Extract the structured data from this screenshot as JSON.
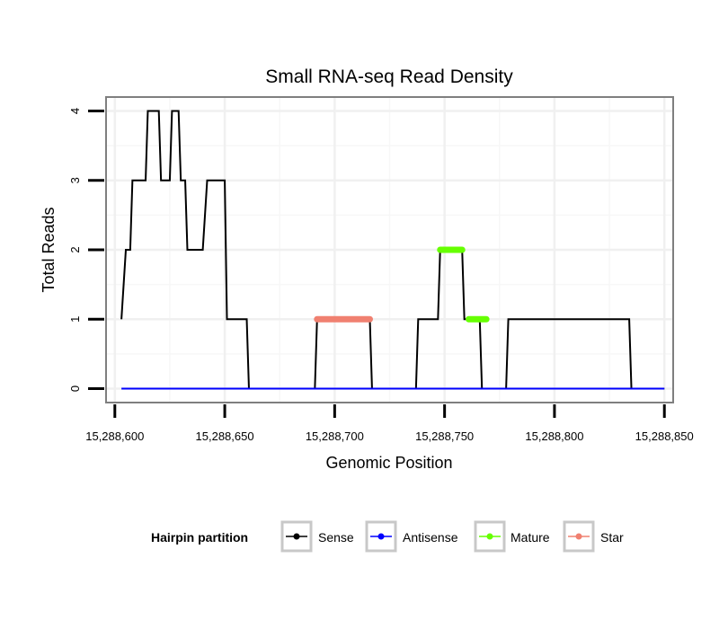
{
  "chart_data": {
    "type": "line",
    "title": "Small RNA-seq Read Density",
    "xlabel": "Genomic Position",
    "ylabel": "Total Reads",
    "xlim": [
      15288596,
      15288854
    ],
    "ylim": [
      -0.2,
      4.2
    ],
    "x_ticks": [
      15288600,
      15288650,
      15288700,
      15288750,
      15288800,
      15288850
    ],
    "x_tick_labels": [
      "15,288,600",
      "15,288,650",
      "15,288,700",
      "15,288,750",
      "15,288,800",
      "15,288,850"
    ],
    "y_ticks": [
      0,
      1,
      2,
      3,
      4
    ],
    "y_tick_labels": [
      "0",
      "1",
      "2",
      "3",
      "4"
    ],
    "grid": true,
    "legend": {
      "title": "Hairpin partition",
      "position": "bottom",
      "entries": [
        "Sense",
        "Antisense",
        "Mature",
        "Star"
      ]
    },
    "series": [
      {
        "name": "Sense",
        "color": "#000000",
        "x": [
          15288603,
          15288605,
          15288607,
          15288608,
          15288610,
          15288614,
          15288615,
          15288620,
          15288621,
          15288625,
          15288626,
          15288629,
          15288630,
          15288632,
          15288633,
          15288639,
          15288640,
          15288642,
          15288643,
          15288650,
          15288651,
          15288660,
          15288661,
          15288676,
          15288677,
          15288691,
          15288692,
          15288716,
          15288717,
          15288737,
          15288738,
          15288747,
          15288748,
          15288758,
          15288759,
          15288766,
          15288767,
          15288778,
          15288779,
          15288834,
          15288835,
          15288850
        ],
        "y": [
          1,
          2,
          2,
          3,
          3,
          3,
          4,
          4,
          3,
          3,
          4,
          4,
          3,
          3,
          2,
          2,
          2,
          3,
          3,
          3,
          1,
          1,
          0,
          0,
          0,
          0,
          1,
          1,
          0,
          0,
          1,
          1,
          2,
          2,
          1,
          1,
          0,
          0,
          1,
          1,
          0,
          0
        ]
      },
      {
        "name": "Antisense",
        "color": "#0000ff",
        "x": [
          15288603,
          15288850
        ],
        "y": [
          0,
          0
        ]
      },
      {
        "name": "Mature",
        "color": "#66ff00",
        "segments": [
          {
            "x": [
              15288748,
              15288758
            ],
            "y": 2
          },
          {
            "x": [
              15288761,
              15288769
            ],
            "y": 1
          }
        ]
      },
      {
        "name": "Star",
        "color": "#f08070",
        "segments": [
          {
            "x": [
              15288692,
              15288716
            ],
            "y": 1
          }
        ]
      }
    ]
  }
}
